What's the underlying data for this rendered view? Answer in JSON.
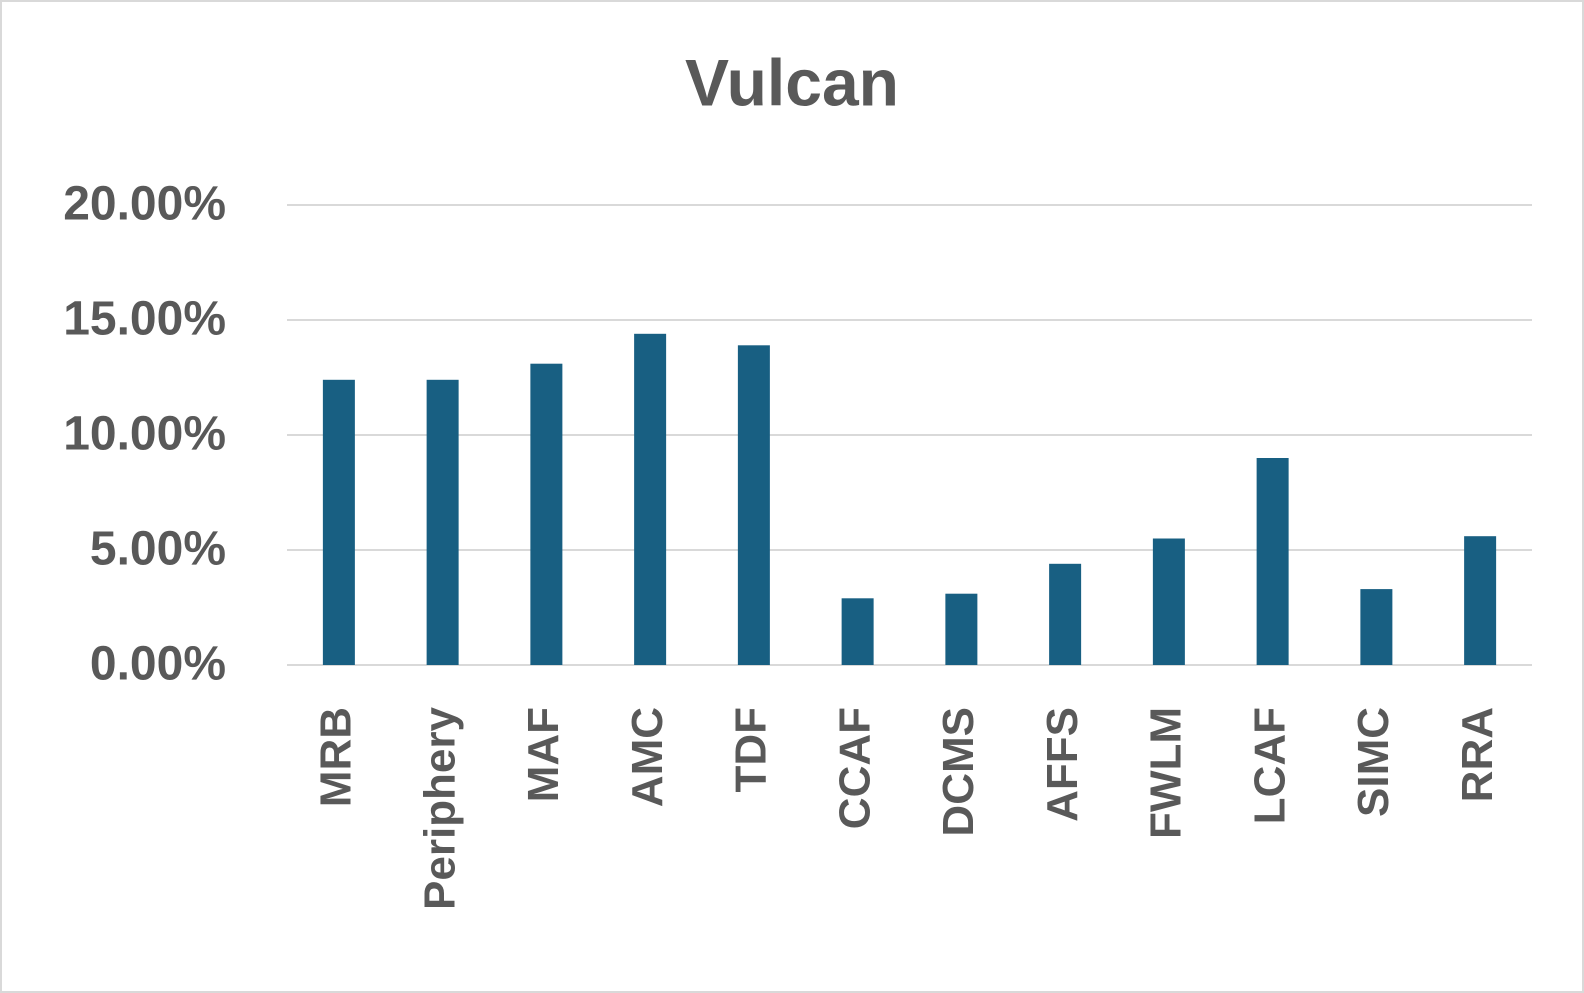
{
  "chart_data": {
    "type": "bar",
    "title": "Vulcan",
    "categories": [
      "MRB",
      "Periphery",
      "MAF",
      "AMC",
      "TDF",
      "CCAF",
      "DCMS",
      "AFFS",
      "FWLM",
      "LCAF",
      "SIMC",
      "RRA"
    ],
    "values": [
      12.4,
      12.4,
      13.1,
      14.4,
      13.9,
      2.9,
      3.1,
      4.4,
      5.5,
      9.0,
      3.3,
      5.6
    ],
    "color": "#185f82",
    "ylim": [
      0,
      20
    ],
    "yticks": [
      {
        "value": 0,
        "label": "0.00%"
      },
      {
        "value": 5,
        "label": "5.00%"
      },
      {
        "value": 10,
        "label": "10.00%"
      },
      {
        "value": 15,
        "label": "15.00%"
      },
      {
        "value": 20,
        "label": "20.00%"
      }
    ],
    "grid": true
  }
}
